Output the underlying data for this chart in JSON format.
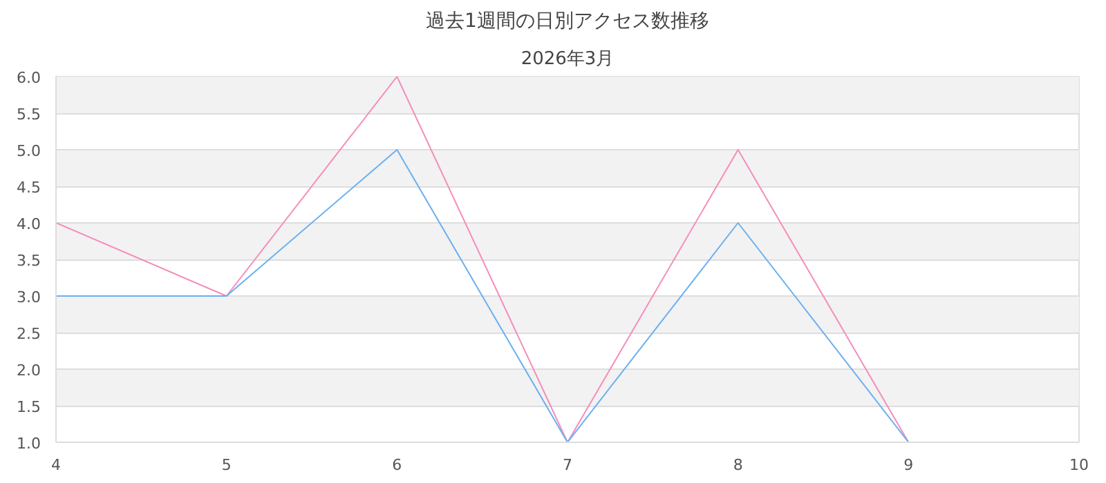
{
  "chart_data": {
    "type": "line",
    "title": "過去1週間の日別アクセス数推移",
    "subtitle": "2026年3月",
    "x": [
      4,
      5,
      6,
      7,
      8,
      9
    ],
    "series": [
      {
        "color": "#f58cbc",
        "values": [
          4,
          3,
          6,
          1,
          5,
          1
        ]
      },
      {
        "color": "#6aaff0",
        "values": [
          3,
          3,
          5,
          1,
          4,
          1
        ]
      }
    ],
    "xlim": [
      4,
      10
    ],
    "xticks": [
      4,
      5,
      6,
      7,
      8,
      9,
      10
    ],
    "ylim": [
      1,
      6
    ],
    "yticks": [
      {
        "value": 1,
        "label": "1.0"
      },
      {
        "value": 1.5,
        "label": "1.5"
      },
      {
        "value": 2,
        "label": "2.0"
      },
      {
        "value": 2.5,
        "label": "2.5"
      },
      {
        "value": 3,
        "label": "3.0"
      },
      {
        "value": 3.5,
        "label": "3.5"
      },
      {
        "value": 4,
        "label": "4.0"
      },
      {
        "value": 4.5,
        "label": "4.5"
      },
      {
        "value": 5,
        "label": "5.0"
      },
      {
        "value": 5.5,
        "label": "5.5"
      },
      {
        "value": 6,
        "label": "6.0"
      }
    ],
    "grid": "y",
    "marker": "none",
    "line_style": "solid"
  }
}
